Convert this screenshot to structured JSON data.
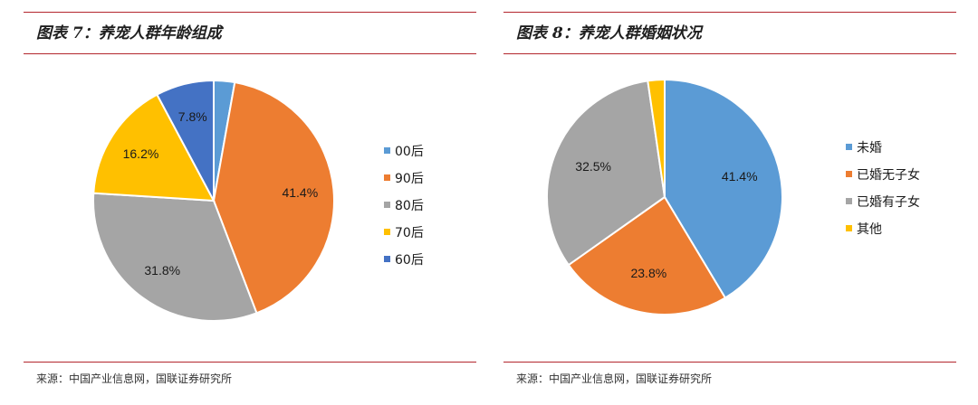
{
  "charts": [
    {
      "title": "图表 7：养宠人群年龄组成",
      "source": "来源：中国产业信息网，国联证券研究所",
      "chart_data": {
        "type": "pie",
        "title": "图表 7：养宠人群年龄组成",
        "legend_position": "right",
        "start": "12 o'clock",
        "direction": "clockwise",
        "slices": [
          {
            "label": "00后",
            "value": 2.8,
            "value_label": "",
            "color": "#5b9bd5"
          },
          {
            "label": "90后",
            "value": 41.4,
            "value_label": "41.4%",
            "color": "#ed7d31"
          },
          {
            "label": "80后",
            "value": 31.8,
            "value_label": "31.8%",
            "color": "#a5a5a5"
          },
          {
            "label": "70后",
            "value": 16.2,
            "value_label": "16.2%",
            "color": "#ffc000"
          },
          {
            "label": "60后",
            "value": 7.8,
            "value_label": "7.8%",
            "color": "#4472c4"
          }
        ]
      }
    },
    {
      "title": "图表 8：养宠人群婚姻状况",
      "source": "来源：中国产业信息网，国联证券研究所",
      "chart_data": {
        "type": "pie",
        "title": "图表 8：养宠人群婚姻状况",
        "legend_position": "right",
        "start": "12 o'clock",
        "direction": "clockwise",
        "slices": [
          {
            "label": "未婚",
            "value": 41.4,
            "value_label": "41.4%",
            "color": "#5b9bd5"
          },
          {
            "label": "已婚无子女",
            "value": 23.8,
            "value_label": "23.8%",
            "color": "#ed7d31"
          },
          {
            "label": "已婚有子女",
            "value": 32.5,
            "value_label": "32.5%",
            "color": "#a5a5a5"
          },
          {
            "label": "其他",
            "value": 2.3,
            "value_label": "",
            "color": "#ffc000"
          }
        ]
      }
    }
  ]
}
